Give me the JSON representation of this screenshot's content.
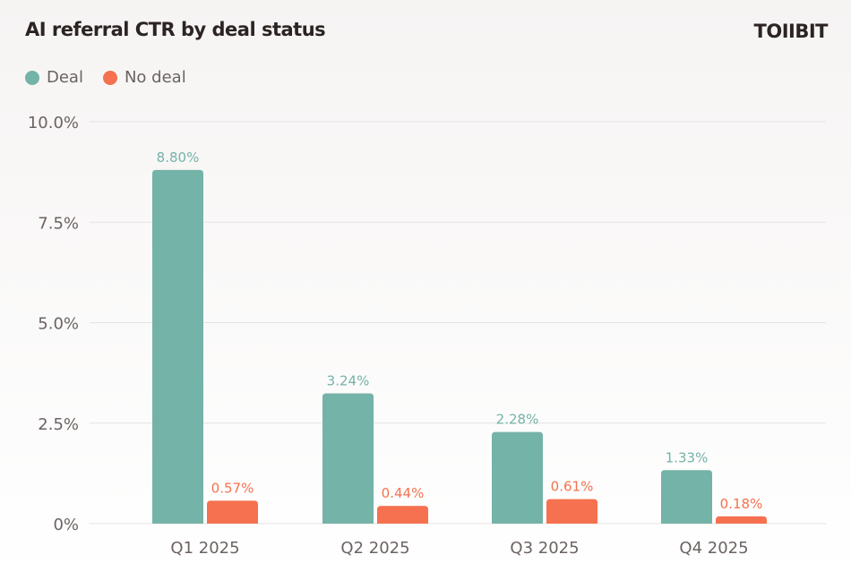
{
  "chart_data": {
    "type": "bar",
    "title": "AI referral CTR by deal status",
    "brand": "TOIIBIT",
    "categories": [
      "Q1 2025",
      "Q2 2025",
      "Q3 2025",
      "Q4 2025"
    ],
    "series": [
      {
        "name": "Deal",
        "color": "#74b3a7",
        "values": [
          8.8,
          3.24,
          2.28,
          1.33
        ],
        "labels": [
          "8.80%",
          "3.24%",
          "2.28%",
          "1.33%"
        ]
      },
      {
        "name": "No deal",
        "color": "#f5714f",
        "values": [
          0.57,
          0.44,
          0.61,
          0.18
        ],
        "labels": [
          "0.57%",
          "0.44%",
          "0.61%",
          "0.18%"
        ]
      }
    ],
    "ylim": [
      0,
      10
    ],
    "yticks": [
      0,
      2.5,
      5,
      7.5,
      10
    ],
    "ytick_labels": [
      "0%",
      "2.5%",
      "5.0%",
      "7.5%",
      "10.0%"
    ],
    "grid": true,
    "legend": "top-left",
    "xlabel": "",
    "ylabel": ""
  }
}
